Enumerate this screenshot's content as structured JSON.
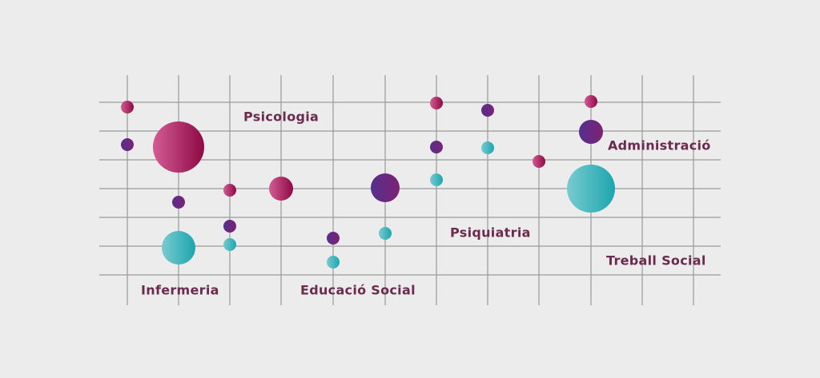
{
  "labels": [
    "Psicologia",
    "Infermeria",
    "Educació Social",
    "Psiquiatria",
    "Administració",
    "Treball Social"
  ]
}
